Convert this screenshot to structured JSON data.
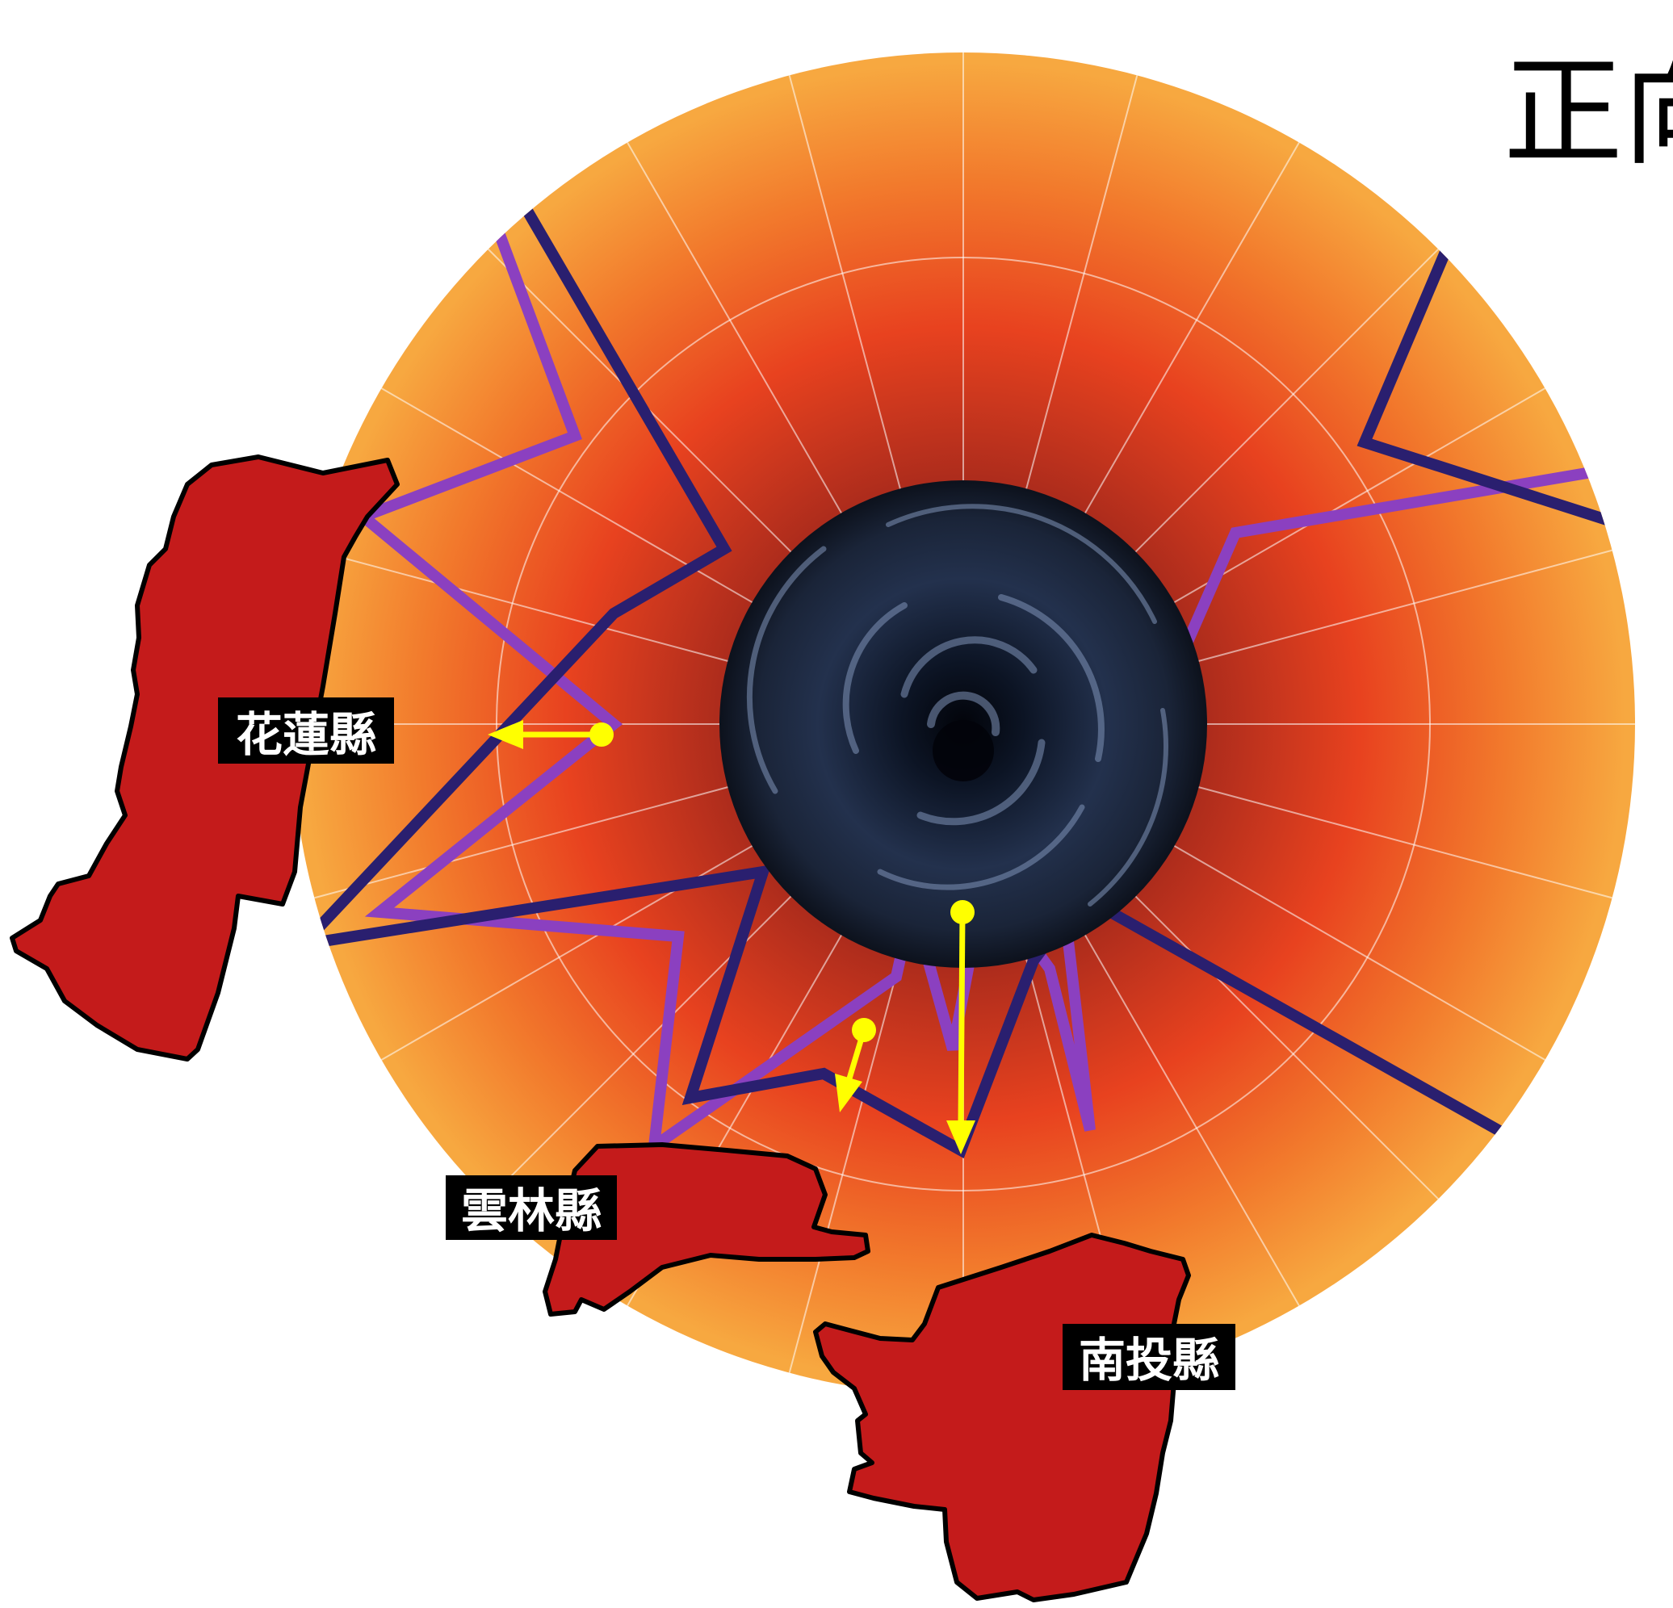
{
  "title": "正向",
  "labels": {
    "hualien": "花蓮縣",
    "yunlin": "雲林縣",
    "nantou": "南投縣"
  },
  "colors": {
    "disc_outer": "#f7a23a",
    "disc_mid": "#ec4420",
    "disc_inner": "#7a1f1e",
    "county_fill": "#c41b1b",
    "purple_line": "#8b40c0",
    "navy_line": "#2a1f6f",
    "arrow": "#ffff00",
    "grid": "#ffffff"
  },
  "icons": {
    "center": "black-hole-swirl",
    "arrows": "yellow-shift-arrow"
  }
}
